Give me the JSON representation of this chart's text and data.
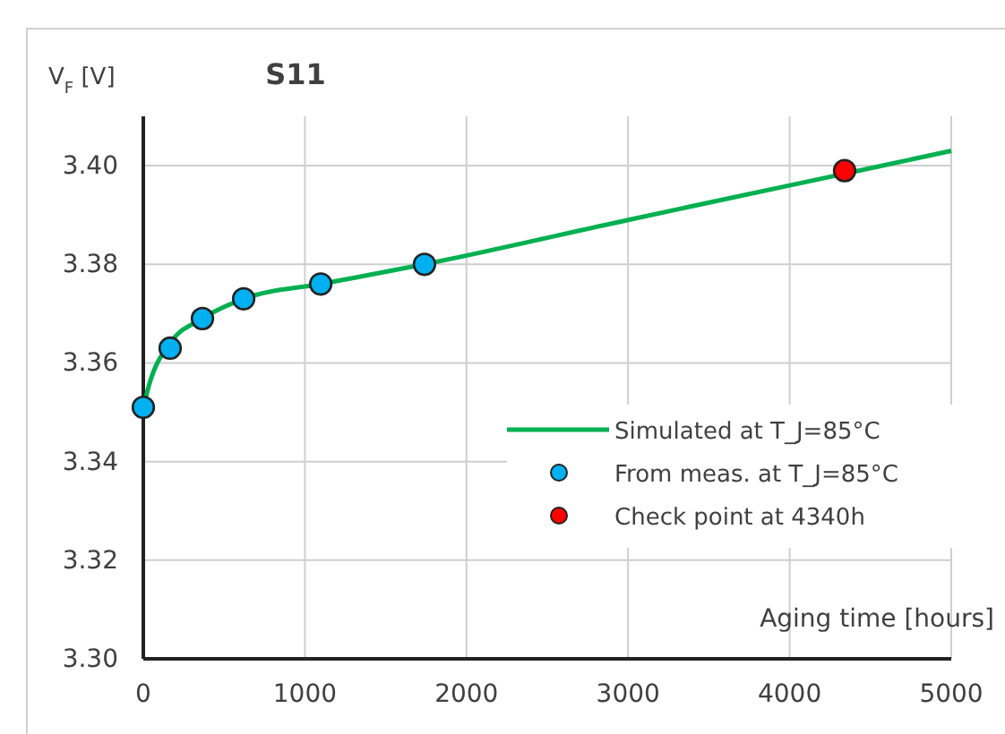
{
  "chart_data": {
    "type": "line",
    "title": "S11",
    "xlabel": "Aging time [hours]",
    "ylabel": "V$_{F}$ [V]",
    "xlim": [
      0,
      5000
    ],
    "xticks": [
      0,
      1000,
      2000,
      3000,
      4000,
      5000
    ],
    "ylim": [
      3.3,
      3.41
    ],
    "yticks": [
      {
        "value": 3.3,
        "label": "3.30"
      },
      {
        "value": 3.32,
        "label": "3.32"
      },
      {
        "value": 3.34,
        "label": "3.34"
      },
      {
        "value": 3.36,
        "label": "3.36"
      },
      {
        "value": 3.38,
        "label": "3.38"
      },
      {
        "value": 3.4,
        "label": "3.40"
      }
    ],
    "grid": true,
    "legend": "right",
    "series": [
      {
        "name": "Simulated at T_J=85°C",
        "color": "#00b050",
        "marker": "none",
        "x": [
          0,
          40,
          166,
          366,
          621,
          1098,
          1740,
          3000,
          4000,
          5000
        ],
        "values": [
          3.351,
          3.356,
          3.364,
          3.369,
          3.373,
          3.376,
          3.38,
          3.389,
          3.396,
          3.403
        ]
      },
      {
        "name": "From meas. at T_J=85°C",
        "type": "scatter",
        "color": "#00b0f0",
        "marker": "circle",
        "x": [
          0,
          166,
          366,
          621,
          1098,
          1740
        ],
        "values": [
          3.351,
          3.363,
          3.369,
          3.373,
          3.376,
          3.38
        ]
      },
      {
        "name": "Check point at 4340h",
        "type": "scatter",
        "color": "#ff0000",
        "marker": "circle",
        "x": [
          4340
        ],
        "values": [
          3.399
        ]
      }
    ]
  }
}
